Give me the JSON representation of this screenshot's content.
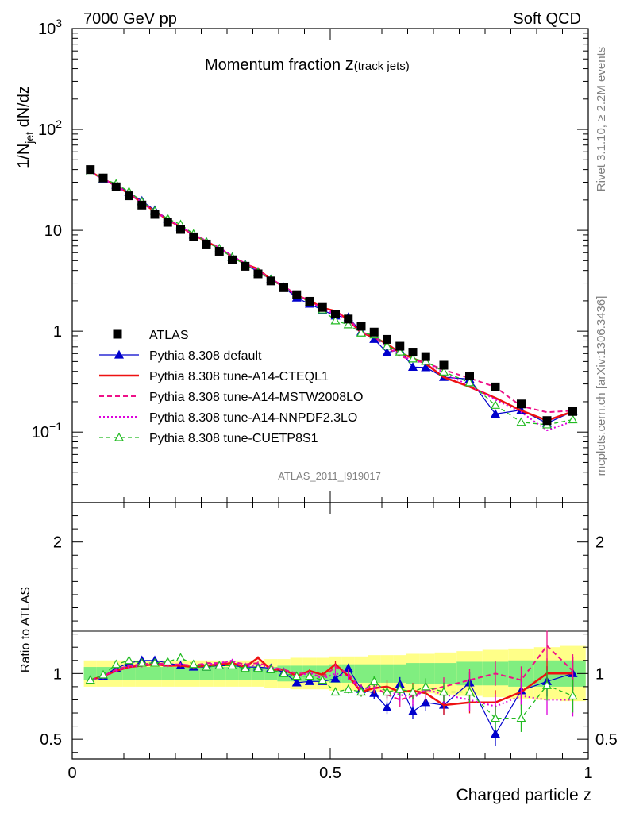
{
  "header": {
    "left": "7000 GeV pp",
    "right": "Soft QCD"
  },
  "side_labels": {
    "rivet": "Rivet 3.1.10, ≥ 2.2M events",
    "mcplots": "mcplots.cern.ch [arXiv:1306.3436]"
  },
  "chart_data": {
    "type": "scatter",
    "title_main": "Momentum fraction ",
    "title_var": "z",
    "title_sub": "(track jets)",
    "analysis_id": "ATLAS_2011_I919017",
    "ylabel_top": "1/N",
    "ylabel_top_sub": "jet",
    "ylabel_top_tail": " dN/dz",
    "ylabel_ratio": "Ratio to ATLAS",
    "xlabel": "Charged particle z",
    "xlim": [
      0,
      1
    ],
    "ylim_top": [
      0.02,
      1000
    ],
    "ylim_ratio": [
      0.35,
      2.3
    ],
    "y_scale_top": "log",
    "x_ticks": [
      "0",
      "0.5",
      "1"
    ],
    "y_ticks_top": [
      {
        "base": "10",
        "exp": "3"
      },
      {
        "base": "10",
        "exp": "2"
      },
      {
        "base": "10",
        "exp": ""
      },
      {
        "base": "1",
        "exp": ""
      },
      {
        "base": "10",
        "exp": "−1"
      }
    ],
    "y_ticks_ratio": [
      "0.5",
      "1",
      "2"
    ],
    "legend_position": "middle-left",
    "x": [
      0.035,
      0.06,
      0.085,
      0.11,
      0.135,
      0.16,
      0.185,
      0.21,
      0.235,
      0.26,
      0.285,
      0.31,
      0.335,
      0.36,
      0.385,
      0.41,
      0.435,
      0.46,
      0.485,
      0.51,
      0.535,
      0.56,
      0.585,
      0.61,
      0.635,
      0.66,
      0.685,
      0.72,
      0.77,
      0.82,
      0.87,
      0.92,
      0.97
    ],
    "series": [
      {
        "name": "ATLAS",
        "color": "#000000",
        "values": [
          40,
          33,
          27,
          22,
          17.8,
          14.4,
          12,
          10.2,
          8.6,
          7.3,
          6.2,
          5.1,
          4.4,
          3.7,
          3.15,
          2.7,
          2.3,
          1.98,
          1.72,
          1.48,
          1.32,
          1.12,
          0.98,
          0.83,
          0.71,
          0.62,
          0.56,
          0.46,
          0.36,
          0.28,
          0.19,
          0.13,
          0.16
        ]
      },
      {
        "name": "Pythia 8.308 default",
        "color": "#0000cc",
        "ratio": [
          0.95,
          0.98,
          1.04,
          1.08,
          1.1,
          1.1,
          1.08,
          1.06,
          1.05,
          1.05,
          1.06,
          1.06,
          1.05,
          1.05,
          1.04,
          1.01,
          0.93,
          0.94,
          0.94,
          0.96,
          1.04,
          0.88,
          0.85,
          0.74,
          0.92,
          0.71,
          0.78,
          0.76,
          0.93,
          0.54,
          0.87,
          0.94,
          1.0
        ]
      },
      {
        "name": "Pythia 8.308 tune-A14-CTEQL1",
        "color": "#ee1111",
        "ratio": [
          0.95,
          0.98,
          1.02,
          1.05,
          1.06,
          1.07,
          1.06,
          1.06,
          1.05,
          1.06,
          1.07,
          1.08,
          1.05,
          1.12,
          1.03,
          1.03,
          0.98,
          1.02,
          0.99,
          1.07,
          0.98,
          0.86,
          0.89,
          0.9,
          0.86,
          0.87,
          0.85,
          0.76,
          0.78,
          0.78,
          0.86,
          1.0,
          1.0
        ]
      },
      {
        "name": "Pythia 8.308 tune-A14-MSTW2008LO",
        "color": "#ee1188",
        "ratio": [
          0.95,
          0.98,
          1.03,
          1.06,
          1.07,
          1.08,
          1.07,
          1.07,
          1.06,
          1.08,
          1.08,
          1.09,
          1.07,
          1.08,
          1.05,
          1.03,
          1.0,
          1.0,
          0.97,
          1.05,
          1.0,
          0.88,
          0.9,
          0.84,
          0.8,
          0.83,
          0.87,
          0.9,
          0.95,
          1.0,
          0.95,
          1.21,
          1.02
        ]
      },
      {
        "name": "Pythia 8.308 tune-A14-NNPDF2.3LO",
        "color": "#dd00dd",
        "ratio": [
          0.95,
          0.97,
          1.02,
          1.05,
          1.06,
          1.07,
          1.06,
          1.07,
          1.06,
          1.07,
          1.08,
          1.1,
          1.05,
          1.07,
          1.04,
          1.03,
          0.97,
          1.01,
          0.96,
          1.0,
          0.98,
          0.87,
          0.92,
          0.86,
          0.84,
          0.81,
          0.88,
          0.84,
          0.8,
          0.75,
          0.83,
          0.8,
          0.8
        ]
      },
      {
        "name": "Pythia 8.308 tune-CUETP8S1",
        "color": "#22bb22",
        "ratio": [
          0.95,
          0.99,
          1.07,
          1.1,
          1.08,
          1.08,
          1.09,
          1.12,
          1.07,
          1.05,
          1.06,
          1.06,
          1.04,
          1.04,
          1.03,
          1.0,
          0.98,
          0.98,
          0.95,
          0.86,
          0.88,
          0.86,
          0.94,
          0.86,
          0.88,
          0.86,
          0.9,
          0.86,
          0.86,
          0.66,
          0.66,
          0.91,
          0.83
        ]
      }
    ],
    "band_inner": [
      1.05,
      1.05,
      1.05,
      1.05,
      1.05,
      1.05,
      1.05,
      1.05,
      1.05,
      1.05,
      1.05,
      1.05,
      1.05,
      1.05,
      1.05,
      1.06,
      1.06,
      1.06,
      1.06,
      1.07,
      1.07,
      1.07,
      1.07,
      1.07,
      1.07,
      1.08,
      1.08,
      1.08,
      1.09,
      1.09,
      1.1,
      1.1,
      1.1
    ],
    "band_outer": [
      1.1,
      1.1,
      1.1,
      1.1,
      1.1,
      1.1,
      1.1,
      1.1,
      1.1,
      1.1,
      1.1,
      1.1,
      1.1,
      1.1,
      1.11,
      1.11,
      1.12,
      1.12,
      1.12,
      1.13,
      1.13,
      1.13,
      1.14,
      1.14,
      1.14,
      1.15,
      1.15,
      1.16,
      1.17,
      1.18,
      1.19,
      1.2,
      1.21
    ],
    "colors": {
      "band_inner": "#80ee80",
      "band_outer": "#ffff88"
    }
  }
}
